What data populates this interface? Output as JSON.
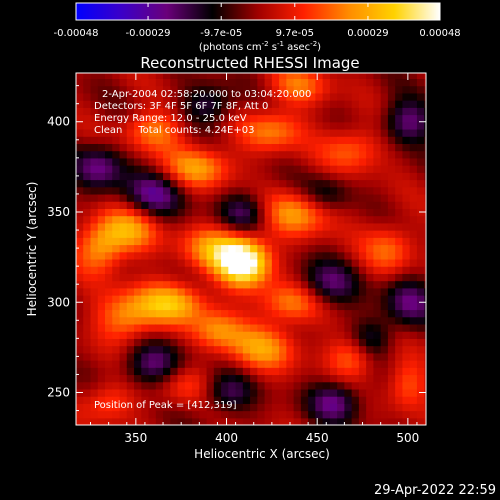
{
  "colorbar": {
    "tick_labels": [
      "-0.00048",
      "-0.00029",
      "-9.7e-05",
      "9.7e-05",
      "0.00029",
      "0.00048"
    ],
    "tick_values": [
      -0.00048,
      -0.00029,
      -9.7e-05,
      9.7e-05,
      0.00029,
      0.00048
    ],
    "range": [
      -0.00048,
      0.00048
    ],
    "unit_label": "(photons cm",
    "unit_exp1": "-2",
    "unit_mid": " s",
    "unit_exp2": "-1",
    "unit_mid2": " asec",
    "unit_exp3": "-2",
    "unit_end": ")",
    "colors": [
      "#0000ff",
      "#3b00c8",
      "#6a007a",
      "#000000",
      "#a00000",
      "#ff2000",
      "#ff8c00",
      "#ffd200",
      "#ffffff"
    ]
  },
  "chart_data": {
    "type": "heatmap",
    "title": "Reconstructed RHESSI Image",
    "xlabel": "Heliocentric X (arcsec)",
    "ylabel": "Heliocentric Y (arcsec)",
    "xlim": [
      317,
      510
    ],
    "ylim": [
      232,
      427
    ],
    "xticks": [
      350,
      400,
      450,
      500
    ],
    "yticks": [
      250,
      300,
      350,
      400
    ],
    "annotations": [
      "2-Apr-2004 02:58:20.000 to 03:04:20.000",
      "Detectors: 3F 4F 5F 6F 7F 8F, Att 0",
      "Energy Range: 12.0 - 25.0 keV",
      "Clean     Total counts: 4.24E+03"
    ],
    "peak_label": "Position of Peak = [412,319]",
    "peak_position": [
      412,
      319
    ],
    "sources": [
      {
        "x": 410,
        "y": 322,
        "amp": 1.0,
        "sx": 10,
        "sy": 9
      },
      {
        "x": 395,
        "y": 330,
        "amp": 0.55,
        "sx": 14,
        "sy": 9
      },
      {
        "x": 370,
        "y": 300,
        "amp": 0.6,
        "sx": 14,
        "sy": 8
      },
      {
        "x": 345,
        "y": 292,
        "amp": 0.5,
        "sx": 12,
        "sy": 10
      },
      {
        "x": 345,
        "y": 340,
        "amp": 0.55,
        "sx": 12,
        "sy": 9
      },
      {
        "x": 330,
        "y": 330,
        "amp": 0.5,
        "sx": 9,
        "sy": 10
      },
      {
        "x": 385,
        "y": 375,
        "amp": 0.55,
        "sx": 13,
        "sy": 8
      },
      {
        "x": 360,
        "y": 395,
        "amp": 0.45,
        "sx": 12,
        "sy": 8
      },
      {
        "x": 440,
        "y": 350,
        "amp": 0.55,
        "sx": 14,
        "sy": 9
      },
      {
        "x": 425,
        "y": 395,
        "amp": 0.45,
        "sx": 12,
        "sy": 8
      },
      {
        "x": 470,
        "y": 385,
        "amp": 0.4,
        "sx": 12,
        "sy": 9
      },
      {
        "x": 490,
        "y": 330,
        "amp": 0.4,
        "sx": 10,
        "sy": 10
      },
      {
        "x": 435,
        "y": 300,
        "amp": 0.5,
        "sx": 12,
        "sy": 8
      },
      {
        "x": 420,
        "y": 275,
        "amp": 0.5,
        "sx": 14,
        "sy": 9
      },
      {
        "x": 470,
        "y": 270,
        "amp": 0.4,
        "sx": 10,
        "sy": 8
      },
      {
        "x": 395,
        "y": 285,
        "amp": 0.45,
        "sx": 10,
        "sy": 8
      },
      {
        "x": 335,
        "y": 245,
        "amp": 0.35,
        "sx": 10,
        "sy": 8
      },
      {
        "x": 500,
        "y": 255,
        "amp": 0.35,
        "sx": 8,
        "sy": 10
      },
      {
        "x": 440,
        "y": 420,
        "amp": 0.4,
        "sx": 12,
        "sy": 8
      },
      {
        "x": 375,
        "y": 255,
        "amp": 0.3,
        "sx": 12,
        "sy": 8
      }
    ],
    "negatives": [
      {
        "x": 360,
        "y": 360,
        "amp": -0.5,
        "sx": 12,
        "sy": 9
      },
      {
        "x": 410,
        "y": 350,
        "amp": -0.45,
        "sx": 10,
        "sy": 8
      },
      {
        "x": 360,
        "y": 265,
        "amp": -0.5,
        "sx": 12,
        "sy": 9
      },
      {
        "x": 455,
        "y": 310,
        "amp": -0.45,
        "sx": 12,
        "sy": 9
      },
      {
        "x": 500,
        "y": 300,
        "amp": -0.45,
        "sx": 10,
        "sy": 10
      },
      {
        "x": 500,
        "y": 400,
        "amp": -0.5,
        "sx": 10,
        "sy": 9
      },
      {
        "x": 460,
        "y": 245,
        "amp": -0.5,
        "sx": 10,
        "sy": 8
      },
      {
        "x": 330,
        "y": 375,
        "amp": -0.5,
        "sx": 10,
        "sy": 9
      },
      {
        "x": 400,
        "y": 250,
        "amp": -0.4,
        "sx": 10,
        "sy": 8
      },
      {
        "x": 455,
        "y": 360,
        "amp": -0.35,
        "sx": 10,
        "sy": 8
      },
      {
        "x": 390,
        "y": 410,
        "amp": -0.4,
        "sx": 10,
        "sy": 8
      },
      {
        "x": 480,
        "y": 280,
        "amp": -0.35,
        "sx": 8,
        "sy": 8
      }
    ]
  },
  "footer": {
    "timestamp": "29-Apr-2022 22:59"
  }
}
